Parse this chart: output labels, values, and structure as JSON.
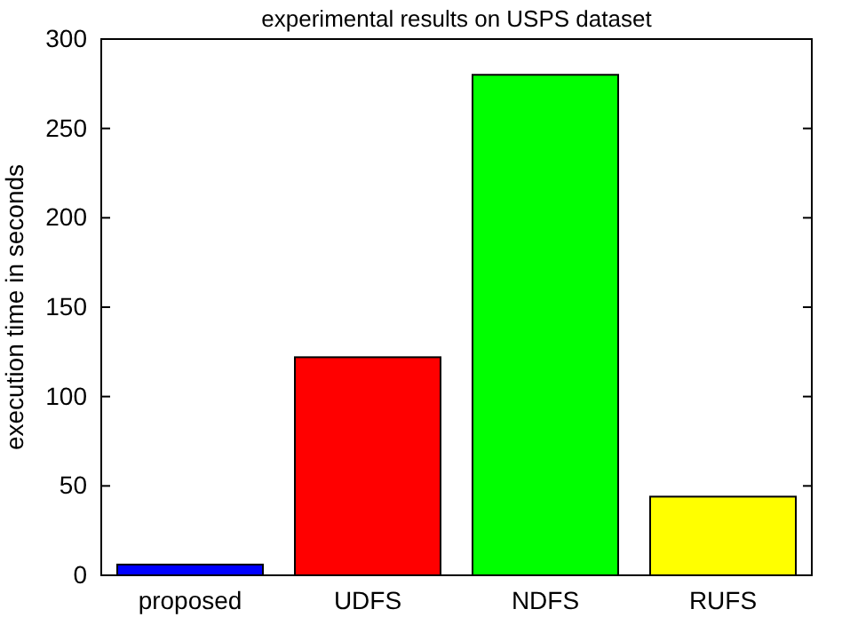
{
  "chart_data": {
    "type": "bar",
    "title": "experimental results on USPS dataset",
    "ylabel": "execution time in seconds",
    "categories": [
      "proposed",
      "UDFS",
      "NDFS",
      "RUFS"
    ],
    "values": [
      6,
      122,
      280,
      44
    ],
    "colors": [
      "#0000ff",
      "#ff0000",
      "#00ff00",
      "#ffff00"
    ],
    "ylim": [
      0,
      300
    ],
    "yticks": [
      0,
      50,
      100,
      150,
      200,
      250,
      300
    ],
    "grid": false
  }
}
